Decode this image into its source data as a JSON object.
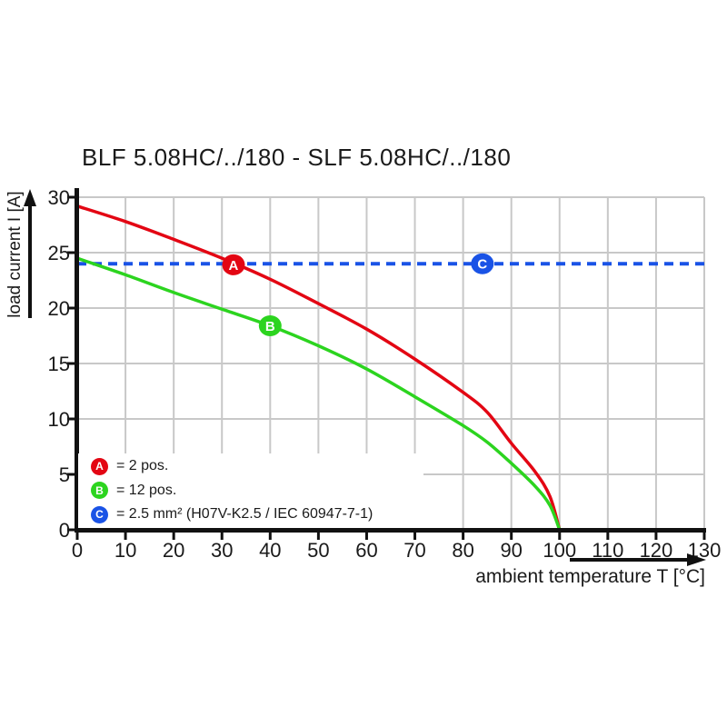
{
  "title": "BLF 5.08HC/../180 - SLF 5.08HC/../180",
  "colors": {
    "background": "#ffffff",
    "grid": "#c8c8c8",
    "axis": "#111111",
    "text": "#1a1a1a",
    "red": "#e30613",
    "green": "#2cd41f",
    "blue": "#1a53e6"
  },
  "legend": {
    "items": [
      {
        "letter": "A",
        "label": "= 2 pos.",
        "color": "#e30613"
      },
      {
        "letter": "B",
        "label": "= 12 pos.",
        "color": "#2cd41f"
      },
      {
        "letter": "C",
        "label": "= 2.5 mm² (H07V-K2.5 / IEC 60947-7-1)",
        "color": "#1a53e6"
      }
    ]
  },
  "chart_data": {
    "type": "line",
    "title": "BLF 5.08HC/../180 - SLF 5.08HC/../180",
    "xlabel": "ambient temperature T [°C]",
    "ylabel": "load current I [A]",
    "xlim": [
      0,
      130
    ],
    "ylim": [
      0,
      30
    ],
    "x_ticks": [
      0,
      10,
      20,
      30,
      40,
      50,
      60,
      70,
      80,
      90,
      100,
      110,
      120,
      130
    ],
    "y_ticks": [
      0,
      5,
      10,
      15,
      20,
      25,
      30
    ],
    "grid": true,
    "legend_position": "lower-left-inside",
    "series": [
      {
        "name": "A = 2 pos.",
        "color": "#e30613",
        "style": "solid",
        "points": [
          [
            0,
            29.2
          ],
          [
            10,
            27.8
          ],
          [
            20,
            26.2
          ],
          [
            30,
            24.5
          ],
          [
            40,
            22.6
          ],
          [
            50,
            20.4
          ],
          [
            60,
            18.1
          ],
          [
            70,
            15.4
          ],
          [
            80,
            12.4
          ],
          [
            85,
            10.6
          ],
          [
            90,
            7.8
          ],
          [
            95,
            5.2
          ],
          [
            98,
            3.0
          ],
          [
            100,
            0
          ]
        ]
      },
      {
        "name": "B = 12 pos.",
        "color": "#2cd41f",
        "style": "solid",
        "points": [
          [
            0,
            24.5
          ],
          [
            10,
            23.0
          ],
          [
            20,
            21.4
          ],
          [
            30,
            19.9
          ],
          [
            40,
            18.4
          ],
          [
            50,
            16.6
          ],
          [
            60,
            14.5
          ],
          [
            70,
            12.0
          ],
          [
            80,
            9.4
          ],
          [
            85,
            7.9
          ],
          [
            90,
            6.0
          ],
          [
            95,
            3.9
          ],
          [
            98,
            2.2
          ],
          [
            100,
            0
          ]
        ]
      },
      {
        "name": "C = 2.5 mm² (H07V-K2.5 / IEC 60947-7-1)",
        "color": "#1a53e6",
        "style": "dashed",
        "points": [
          [
            0,
            24
          ],
          [
            130,
            24
          ]
        ]
      }
    ],
    "markers": [
      {
        "letter": "A",
        "x": 32.4,
        "y": 23.9,
        "color": "#e30613"
      },
      {
        "letter": "B",
        "x": 40,
        "y": 18.4,
        "color": "#2cd41f"
      },
      {
        "letter": "C",
        "x": 84,
        "y": 24,
        "color": "#1a53e6"
      }
    ]
  }
}
